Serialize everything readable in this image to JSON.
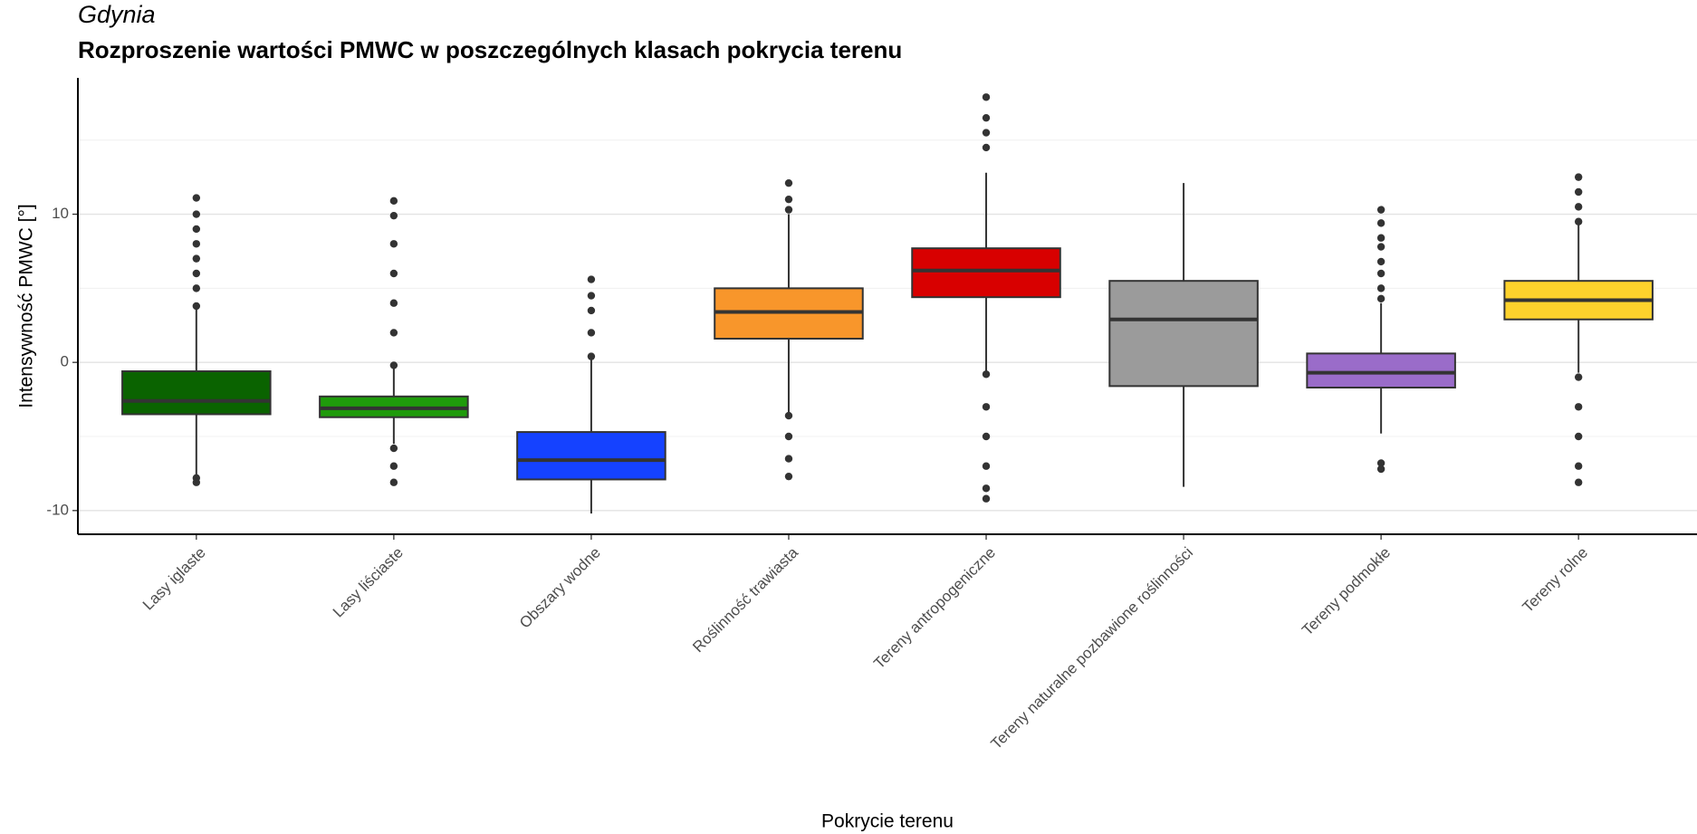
{
  "chart_data": {
    "type": "boxplot",
    "subtitle": "Gdynia",
    "title": "Rozproszenie wartości PMWC w poszczególnych klasach pokrycia terenu",
    "x_label": "Pokrycie terenu",
    "y_label": "Intensywność PMWC [°]",
    "categories": [
      "Lasy iglaste",
      "Lasy liściaste",
      "Obszary wodne",
      "Roślinność trawiasta",
      "Tereny antropogeniczne",
      "Tereny naturalne pozbawione roślinności",
      "Tereny podmokłe",
      "Tereny rolne"
    ],
    "colors": [
      "#0a6300",
      "#1f9b0b",
      "#1542ff",
      "#f8962b",
      "#d80000",
      "#9b9b9b",
      "#9a6cc9",
      "#fdd22c"
    ],
    "boxes": [
      {
        "whisker_low": -7.6,
        "q1": -3.5,
        "median": -2.6,
        "q3": -0.6,
        "whisker_high": 3.6,
        "outliers": [
          3.8,
          5,
          6,
          7,
          8,
          9,
          10,
          11.1,
          -7.8,
          -8.1
        ]
      },
      {
        "whisker_low": -5.5,
        "q1": -3.7,
        "median": -3.1,
        "q3": -2.3,
        "whisker_high": -0.3,
        "outliers": [
          -0.2,
          2,
          4,
          6,
          8,
          9.9,
          10.9,
          -5.8,
          -7,
          -8.1
        ]
      },
      {
        "whisker_low": -10.2,
        "q1": -7.9,
        "median": -6.6,
        "q3": -4.7,
        "whisker_high": 0.2,
        "outliers": [
          0.4,
          2,
          3.5,
          4.5,
          5.6
        ]
      },
      {
        "whisker_low": -3.4,
        "q1": 1.6,
        "median": 3.4,
        "q3": 5.0,
        "whisker_high": 10.0,
        "outliers": [
          10.3,
          11,
          12.1,
          -3.6,
          -5,
          -6.5,
          -7.7
        ]
      },
      {
        "whisker_low": -0.6,
        "q1": 4.4,
        "median": 6.2,
        "q3": 7.7,
        "whisker_high": 12.8,
        "outliers": [
          14.5,
          15.5,
          16.5,
          17.9,
          -0.8,
          -3,
          -5,
          -7,
          -8.5,
          -9.2
        ]
      },
      {
        "whisker_low": -8.4,
        "q1": -1.6,
        "median": 2.9,
        "q3": 5.5,
        "whisker_high": 12.1,
        "outliers": []
      },
      {
        "whisker_low": -4.8,
        "q1": -1.7,
        "median": -0.7,
        "q3": 0.6,
        "whisker_high": 4.0,
        "outliers": [
          4.3,
          5,
          6,
          6.8,
          7.8,
          8.4,
          9.4,
          10.3,
          -6.8,
          -7.2
        ]
      },
      {
        "whisker_low": -0.7,
        "q1": 2.9,
        "median": 4.2,
        "q3": 5.5,
        "whisker_high": 9.3,
        "outliers": [
          9.5,
          10.5,
          11.5,
          12.5,
          -1,
          -3,
          -5,
          -7,
          -8.1
        ]
      }
    ],
    "ylim": [
      -11.6,
      19.2
    ],
    "yticks": [
      -10,
      0,
      10
    ],
    "minor_yticks": [
      -5,
      5,
      15
    ],
    "grid": true
  }
}
